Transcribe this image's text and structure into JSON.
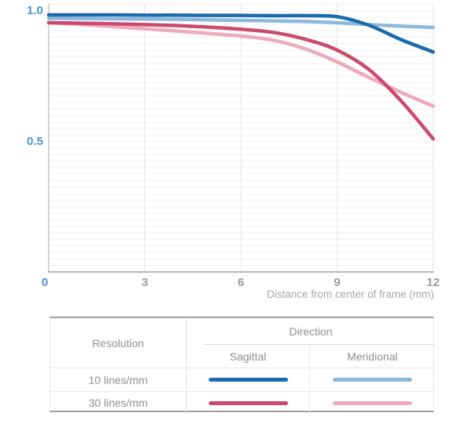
{
  "chart_data": {
    "type": "line",
    "title": "",
    "xlabel": "Distance from center of frame (mm)",
    "ylabel": "",
    "xlim": [
      0,
      12
    ],
    "ylim": [
      0,
      1.03
    ],
    "grid": {
      "horizontal_minor_step": 0.025,
      "vertical_gridlines": [
        3,
        6,
        9,
        12
      ],
      "grid_on": true
    },
    "legend_position": "bottom-table",
    "x": [
      0,
      1,
      2,
      3,
      4,
      5,
      6,
      7,
      8,
      9,
      10,
      11,
      12
    ],
    "x_ticks": [
      {
        "value": 0,
        "label": "0",
        "accent": true
      },
      {
        "value": 3,
        "label": "3",
        "accent": false
      },
      {
        "value": 6,
        "label": "6",
        "accent": false
      },
      {
        "value": 9,
        "label": "9",
        "accent": false
      },
      {
        "value": 12,
        "label": "12",
        "accent": false
      }
    ],
    "y_ticks": [
      {
        "value": 1.0,
        "label": "1.0"
      },
      {
        "value": 0.5,
        "label": "0.5"
      }
    ],
    "series": [
      {
        "name": "10 lines/mm Sagittal",
        "resolution": "10 lines/mm",
        "direction": "Sagittal",
        "color": "#1a6cae",
        "values": [
          0.985,
          0.985,
          0.985,
          0.984,
          0.984,
          0.983,
          0.983,
          0.982,
          0.982,
          0.978,
          0.945,
          0.89,
          0.843
        ]
      },
      {
        "name": "10 lines/mm Meridional",
        "resolution": "10 lines/mm",
        "direction": "Meridional",
        "color": "#8bb8db",
        "values": [
          0.972,
          0.971,
          0.97,
          0.969,
          0.968,
          0.966,
          0.964,
          0.962,
          0.96,
          0.955,
          0.948,
          0.942,
          0.937
        ]
      },
      {
        "name": "30 lines/mm Sagittal",
        "resolution": "30 lines/mm",
        "direction": "Sagittal",
        "color": "#cc4a6c",
        "values": [
          0.955,
          0.953,
          0.951,
          0.948,
          0.944,
          0.938,
          0.93,
          0.918,
          0.892,
          0.85,
          0.775,
          0.655,
          0.51
        ]
      },
      {
        "name": "30 lines/mm Meridional",
        "resolution": "30 lines/mm",
        "direction": "Meridional",
        "color": "#eeaaba",
        "values": [
          0.955,
          0.948,
          0.94,
          0.932,
          0.923,
          0.914,
          0.904,
          0.888,
          0.855,
          0.805,
          0.745,
          0.688,
          0.635
        ]
      }
    ]
  },
  "axis_colors": {
    "y_tick_accent": "#4a96ca",
    "x_tick": "#9a9a9a",
    "axis_title": "#a6a6a6"
  },
  "legend_table": {
    "resolution_header": "Resolution",
    "direction_header": "Direction",
    "col_sagittal": "Sagittal",
    "col_meridional": "Meridional",
    "rows": [
      {
        "resolution": "10 lines/mm",
        "sagittal_series": 0,
        "meridional_series": 1
      },
      {
        "resolution": "30 lines/mm",
        "sagittal_series": 2,
        "meridional_series": 3
      }
    ]
  }
}
